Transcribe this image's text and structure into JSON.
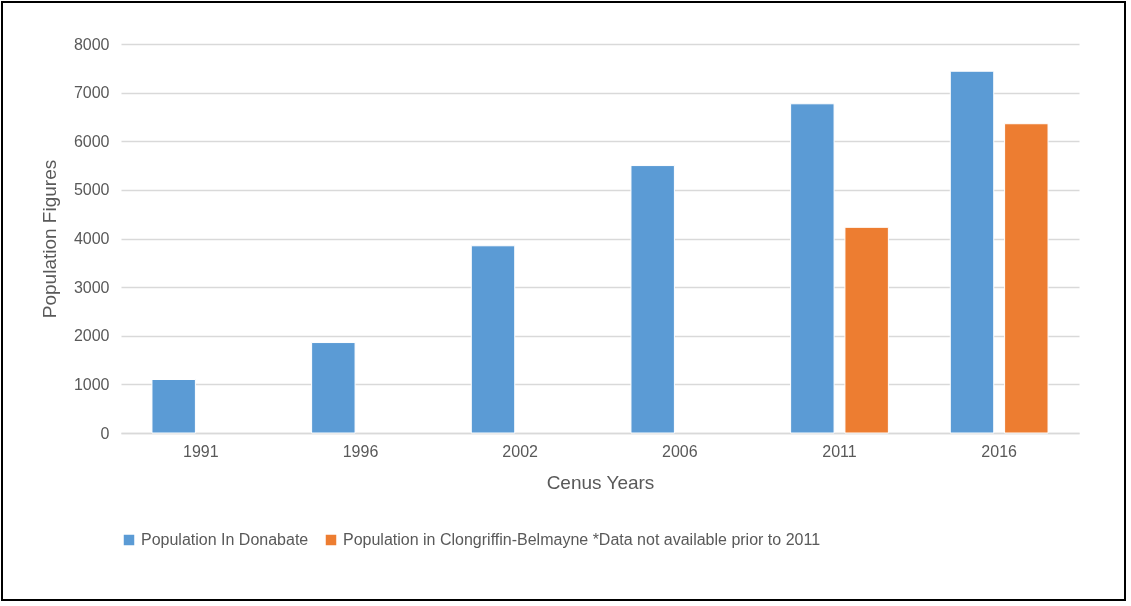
{
  "chart_data": {
    "type": "bar",
    "xlabel": "Cenus Years",
    "ylabel": "Population Figures",
    "categories": [
      "1991",
      "1996",
      "2002",
      "2006",
      "2011",
      "2016"
    ],
    "series": [
      {
        "name": "Population In Donabate",
        "color": "#5b9bd5",
        "values": [
          1100,
          1860,
          3850,
          5500,
          6770,
          7440
        ]
      },
      {
        "name": "Population in Clongriffin-Belmayne *Data not available prior to 2011",
        "color": "#ed7d31",
        "values": [
          null,
          null,
          null,
          null,
          4230,
          6360
        ]
      }
    ],
    "ylim": [
      0,
      8000
    ],
    "yticks": [
      0,
      1000,
      2000,
      3000,
      4000,
      5000,
      6000,
      7000,
      8000
    ],
    "grid": "y",
    "legend": "bottom"
  }
}
